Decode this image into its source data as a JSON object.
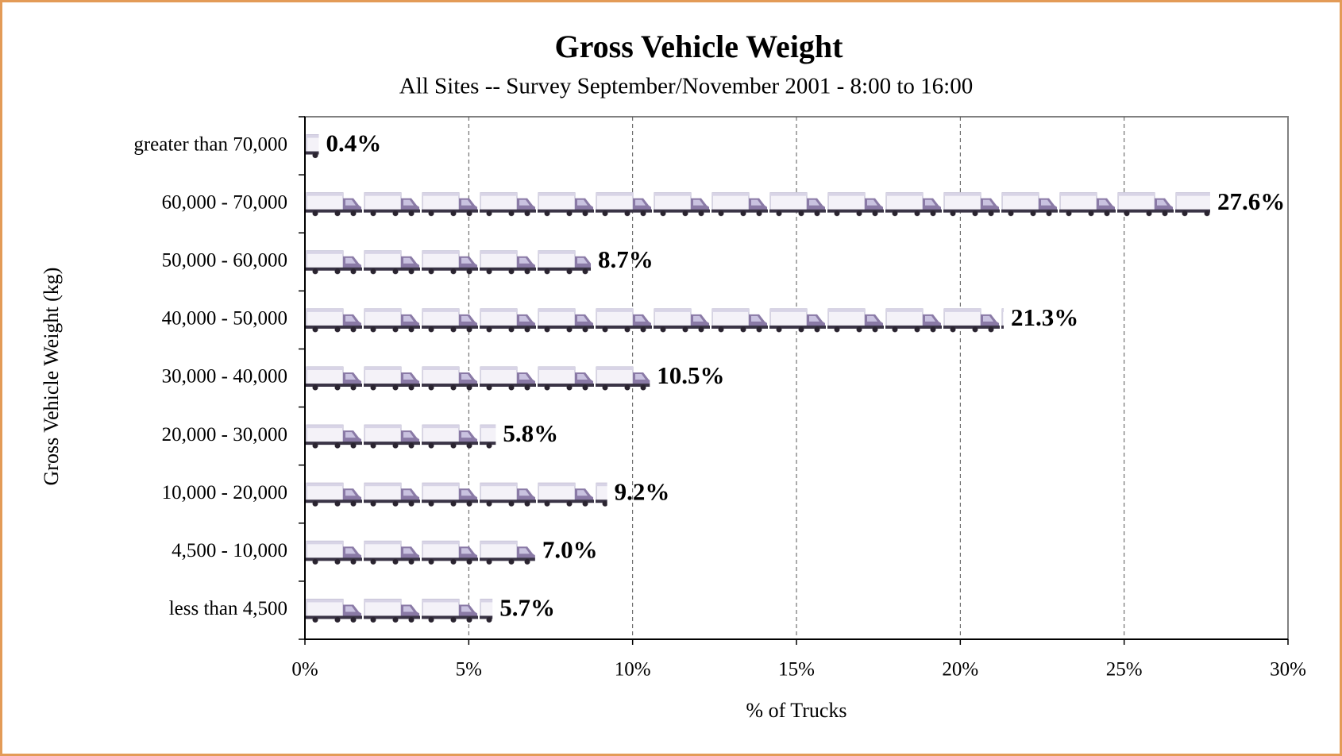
{
  "chart_data": {
    "type": "bar",
    "orientation": "horizontal",
    "title": "Gross Vehicle Weight",
    "subtitle": "All Sites -- Survey September/November 2001 - 8:00 to 16:00",
    "x_label": "% of Trucks",
    "y_label": "Gross Vehicle Weight (kg)",
    "categories": [
      "greater than 70,000",
      "60,000 -  70,000",
      "50,000 -  60,000",
      "40,000 -  50,000",
      "30,000 -  40,000",
      "20,000 -  30,000",
      "10,000 -  20,000",
      "4,500 -  10,000",
      "less than 4,500"
    ],
    "values": [
      0.4,
      27.6,
      8.7,
      21.3,
      10.5,
      5.8,
      9.2,
      7.0,
      5.7
    ],
    "value_labels": [
      "0.4%",
      "27.6%",
      "8.7%",
      "21.3%",
      "10.5%",
      "5.8%",
      "9.2%",
      "7.0%",
      "5.7%"
    ],
    "xlim": [
      0,
      30
    ],
    "xticks": [
      {
        "value": 0,
        "label": "0%"
      },
      {
        "value": 5,
        "label": "5%"
      },
      {
        "value": 10,
        "label": "10%"
      },
      {
        "value": 15,
        "label": "15%"
      },
      {
        "value": 20,
        "label": "20%"
      },
      {
        "value": 25,
        "label": "25%"
      },
      {
        "value": 30,
        "label": "30%"
      }
    ],
    "grid": true
  }
}
